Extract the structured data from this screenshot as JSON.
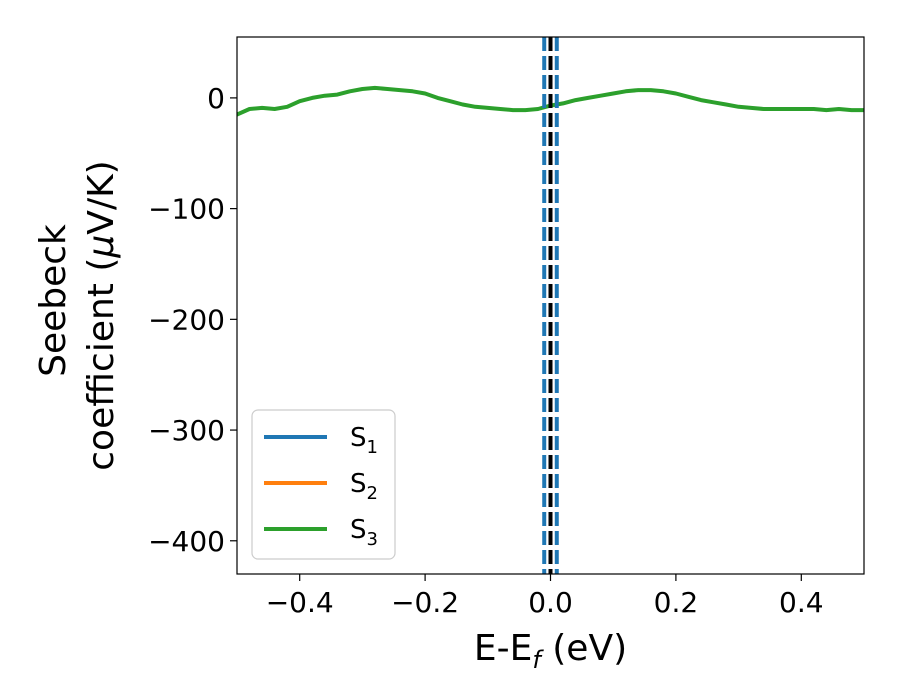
{
  "chart_data": {
    "type": "line",
    "xlabel": {
      "main": "E-E",
      "sub": "f",
      "unit": " (eV)"
    },
    "ylabel": {
      "line1": "Seebeck",
      "line2": "coefficient  (",
      "mu": "μ",
      "line2_end": "V/K)"
    },
    "xlim": [
      -0.5,
      0.5
    ],
    "ylim": [
      -430,
      55
    ],
    "xticks": [
      -0.4,
      -0.2,
      0.0,
      0.2,
      0.4
    ],
    "xtick_labels": [
      "−0.4",
      "−0.2",
      "0.0",
      "0.2",
      "0.4"
    ],
    "yticks": [
      0,
      -100,
      -200,
      -300,
      -400
    ],
    "ytick_labels": [
      "0",
      "−100",
      "−200",
      "−300",
      "−400"
    ],
    "legend_position": "lower-left",
    "series": [
      {
        "name": "S1",
        "base": "S",
        "sub": "1",
        "color": "#1f77b4",
        "x": [],
        "y": []
      },
      {
        "name": "S2",
        "base": "S",
        "sub": "2",
        "color": "#ff7f0e",
        "x": [],
        "y": []
      },
      {
        "name": "S3",
        "base": "S",
        "sub": "3",
        "color": "#2ca02c",
        "x": [
          -0.5,
          -0.48,
          -0.46,
          -0.44,
          -0.42,
          -0.4,
          -0.38,
          -0.36,
          -0.34,
          -0.32,
          -0.3,
          -0.28,
          -0.26,
          -0.24,
          -0.22,
          -0.2,
          -0.18,
          -0.16,
          -0.14,
          -0.12,
          -0.1,
          -0.08,
          -0.06,
          -0.04,
          -0.02,
          0.0,
          0.02,
          0.04,
          0.06,
          0.08,
          0.1,
          0.12,
          0.14,
          0.16,
          0.18,
          0.2,
          0.22,
          0.24,
          0.26,
          0.28,
          0.3,
          0.32,
          0.34,
          0.36,
          0.38,
          0.4,
          0.42,
          0.44,
          0.46,
          0.48,
          0.5
        ],
        "y": [
          -15,
          -10,
          -9,
          -10,
          -8,
          -3,
          0,
          2,
          3,
          6,
          8,
          9,
          8,
          7,
          6,
          4,
          0,
          -3,
          -6,
          -8,
          -9,
          -10,
          -11,
          -11,
          -10,
          -7,
          -5,
          -2,
          0,
          2,
          4,
          6,
          7,
          7,
          6,
          4,
          1,
          -2,
          -4,
          -6,
          -8,
          -9,
          -10,
          -10,
          -10,
          -10,
          -10,
          -11,
          -10,
          -11,
          -11
        ]
      }
    ],
    "vlines": [
      {
        "x": 0.0,
        "color": "#000000",
        "style": "dashed"
      },
      {
        "x": -0.01,
        "color": "#1f77b4",
        "style": "dashed"
      },
      {
        "x": 0.01,
        "color": "#1f77b4",
        "style": "dashed"
      }
    ]
  }
}
